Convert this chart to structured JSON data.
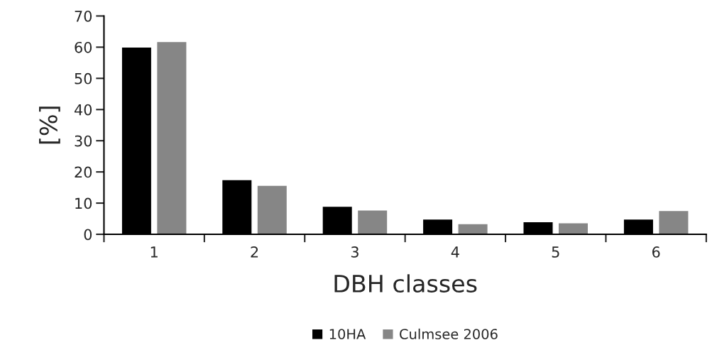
{
  "chart_data": {
    "type": "bar",
    "xlabel": "DBH classes",
    "ylabel": "[%]",
    "categories": [
      "1",
      "2",
      "3",
      "4",
      "5",
      "6"
    ],
    "series": [
      {
        "name": "10HA",
        "color": "#000000",
        "values": [
          60,
          17.5,
          9.0,
          4.9,
          4.0,
          4.9
        ]
      },
      {
        "name": "Culmsee 2006",
        "color": "#868686",
        "values": [
          61.8,
          15.7,
          7.8,
          3.4,
          3.7,
          7.6
        ]
      }
    ],
    "ylim": [
      0,
      70
    ],
    "yticks": [
      0,
      10,
      20,
      30,
      40,
      50,
      60,
      70
    ],
    "grid": false,
    "legend": "bottom"
  }
}
